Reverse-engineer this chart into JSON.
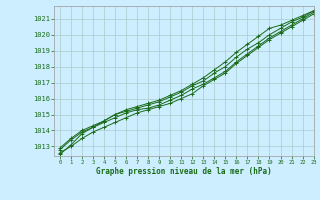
{
  "xlabel": "Graphe pression niveau de la mer (hPa)",
  "xlim": [
    -0.5,
    23
  ],
  "ylim": [
    1012.4,
    1021.8
  ],
  "yticks": [
    1013,
    1014,
    1015,
    1016,
    1017,
    1018,
    1019,
    1020,
    1021
  ],
  "xticks": [
    0,
    1,
    2,
    3,
    4,
    5,
    6,
    7,
    8,
    9,
    10,
    11,
    12,
    13,
    14,
    15,
    16,
    17,
    18,
    19,
    20,
    21,
    22,
    23
  ],
  "background_color": "#cceeff",
  "grid_color": "#aacccc",
  "line_color": "#1a6b1a",
  "line1": [
    1012.6,
    1013.0,
    1013.5,
    1013.9,
    1014.2,
    1014.5,
    1014.8,
    1015.1,
    1015.3,
    1015.5,
    1015.7,
    1016.0,
    1016.3,
    1016.8,
    1017.2,
    1017.6,
    1018.2,
    1018.7,
    1019.2,
    1019.7,
    1020.1,
    1020.5,
    1020.9,
    1021.3
  ],
  "line2": [
    1012.8,
    1013.4,
    1013.9,
    1014.2,
    1014.5,
    1014.8,
    1015.1,
    1015.3,
    1015.4,
    1015.6,
    1015.9,
    1016.2,
    1016.6,
    1016.9,
    1017.3,
    1017.7,
    1018.3,
    1018.8,
    1019.3,
    1019.8,
    1020.2,
    1020.6,
    1021.0,
    1021.4
  ],
  "line3": [
    1012.9,
    1013.5,
    1014.0,
    1014.3,
    1014.6,
    1015.0,
    1015.2,
    1015.4,
    1015.6,
    1015.8,
    1016.1,
    1016.4,
    1016.8,
    1017.1,
    1017.6,
    1018.0,
    1018.6,
    1019.1,
    1019.5,
    1020.0,
    1020.4,
    1020.8,
    1021.1,
    1021.5
  ],
  "line4": [
    1012.5,
    1013.1,
    1013.8,
    1014.2,
    1014.6,
    1015.0,
    1015.3,
    1015.5,
    1015.7,
    1015.9,
    1016.2,
    1016.5,
    1016.9,
    1017.3,
    1017.8,
    1018.3,
    1018.9,
    1019.4,
    1019.9,
    1020.4,
    1020.6,
    1020.9,
    1021.2,
    1021.5
  ]
}
